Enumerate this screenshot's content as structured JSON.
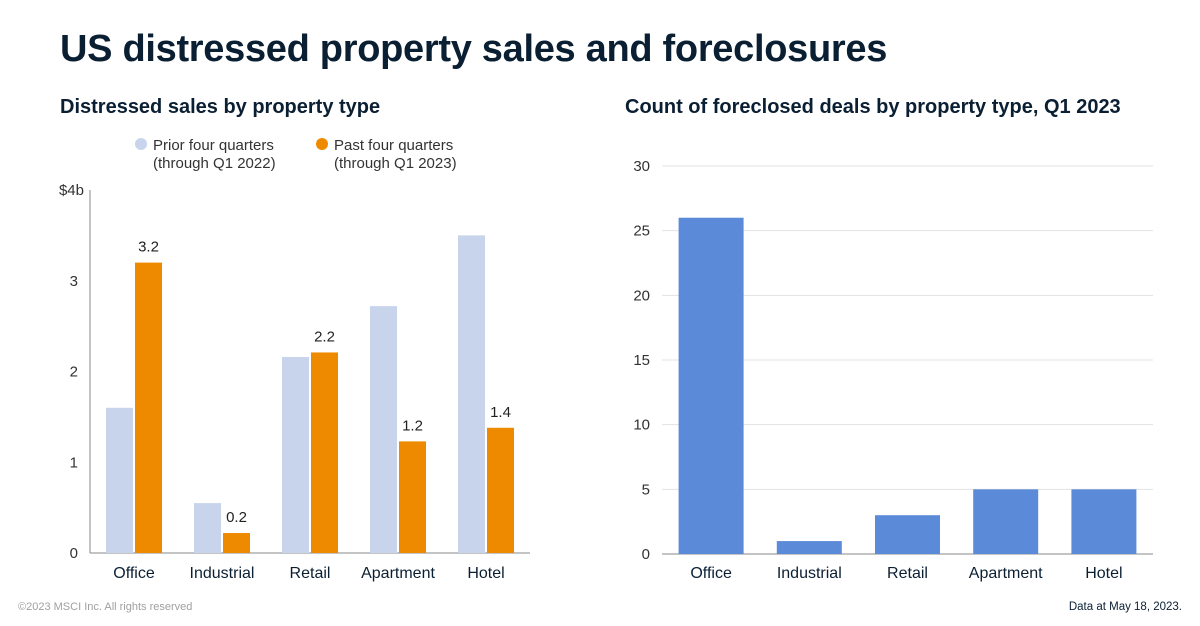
{
  "title": "US distressed property sales and foreclosures",
  "footer": {
    "copyright": "©2023 MSCI Inc. All rights reserved",
    "data_date": "Data at May 18, 2023."
  },
  "colors": {
    "prior": "#c8d4eb",
    "past": "#ee8a00",
    "foreclosed": "#5b8ad9",
    "grid": "#e3e3e3",
    "axis": "#888888"
  },
  "chart_data": [
    {
      "type": "bar",
      "title": "Distressed sales by property type",
      "xlabel": "",
      "ylabel": "",
      "categories": [
        "Office",
        "Industrial",
        "Retail",
        "Apartment",
        "Hotel"
      ],
      "series": [
        {
          "name": "Prior four quarters",
          "name_line2": "(through Q1 2022)",
          "values": [
            1.6,
            0.55,
            2.16,
            2.72,
            3.5
          ],
          "labels": [
            "",
            "",
            "",
            "",
            ""
          ]
        },
        {
          "name": "Past four quarters",
          "name_line2": "(through Q1 2023)",
          "values": [
            3.2,
            0.22,
            2.21,
            1.23,
            1.38
          ],
          "labels": [
            "3.2",
            "0.2",
            "2.2",
            "1.2",
            "1.4"
          ]
        }
      ],
      "ylim": [
        0,
        4
      ],
      "yticks": [
        0,
        1,
        2,
        3,
        4
      ],
      "ytick_labels": [
        "0",
        "1",
        "2",
        "3",
        "$4b"
      ],
      "grid": false,
      "legend_position": "top"
    },
    {
      "type": "bar",
      "title": "Count of foreclosed deals by property type, Q1 2023",
      "xlabel": "",
      "ylabel": "",
      "categories": [
        "Office",
        "Industrial",
        "Retail",
        "Apartment",
        "Hotel"
      ],
      "values": [
        26,
        1,
        3,
        5,
        5
      ],
      "ylim": [
        0,
        30
      ],
      "yticks": [
        0,
        5,
        10,
        15,
        20,
        25,
        30
      ],
      "ytick_labels": [
        "0",
        "5",
        "10",
        "15",
        "20",
        "25",
        "30"
      ],
      "grid": true
    }
  ]
}
